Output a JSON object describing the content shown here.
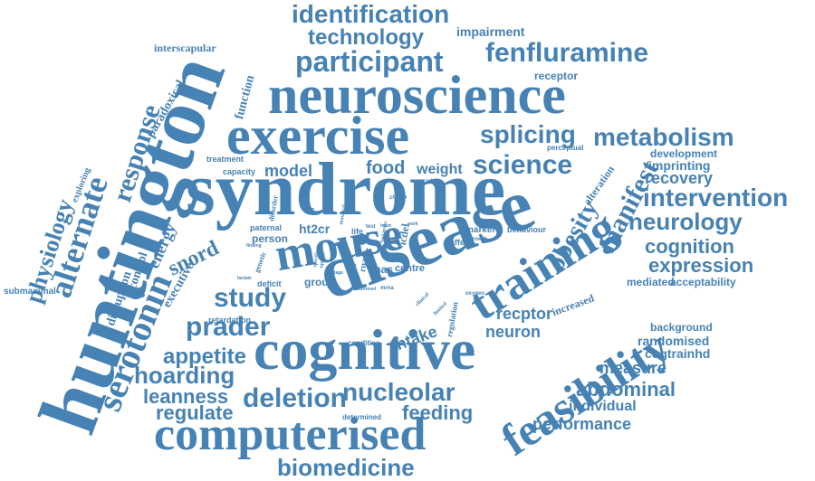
{
  "accent_color": "#4682b4",
  "words": [
    "syndrome",
    "disease",
    "huntington",
    "neuroscience",
    "exercise",
    "cognitive",
    "computerised",
    "training",
    "feasibility",
    "serotonin",
    "mouse",
    "participant",
    "fenfluramine",
    "identification",
    "technology",
    "alternate",
    "response",
    "physiology",
    "splicing",
    "metabolism",
    "science",
    "intervention",
    "neurology",
    "cognition",
    "expression",
    "manifest",
    "obesity",
    "study",
    "prader",
    "deletion",
    "nucleolar",
    "appetite",
    "hoarding",
    "leanness",
    "regulate",
    "feeding",
    "biomedicine",
    "performance",
    "individual",
    "abdominal",
    "measure",
    "cogtrainhd",
    "randomised",
    "neuron",
    "recptor",
    "intake",
    "snord",
    "energy",
    "executive",
    "control",
    "disruption",
    "paradoxical",
    "function",
    "interscapular",
    "impairment",
    "receptor",
    "recovery",
    "imprinting",
    "development",
    "alteration",
    "acceptability",
    "mediated",
    "increased",
    "background",
    "model",
    "food",
    "weight",
    "ht2cr",
    "person",
    "treatment",
    "capacity",
    "submaximal",
    "exploring",
    "retardation",
    "group",
    "mas",
    "centre",
    "marker",
    "behaviour",
    "affect",
    "perceptual",
    "crucial",
    "cluster",
    "icdel",
    "life",
    "test",
    "heart",
    "growth",
    "oxygen",
    "determined",
    "condition",
    "deficit",
    "lactate",
    "genetic",
    "finding",
    "paternal",
    "outcome",
    "disorder",
    "specific",
    "regulation",
    "limited",
    "clinical",
    "result",
    "level",
    "mrna",
    "stage",
    "uptake",
    "loss",
    "rna",
    "maximal",
    "rate",
    "work",
    "trial",
    "hd",
    "brain",
    "food intake"
  ]
}
